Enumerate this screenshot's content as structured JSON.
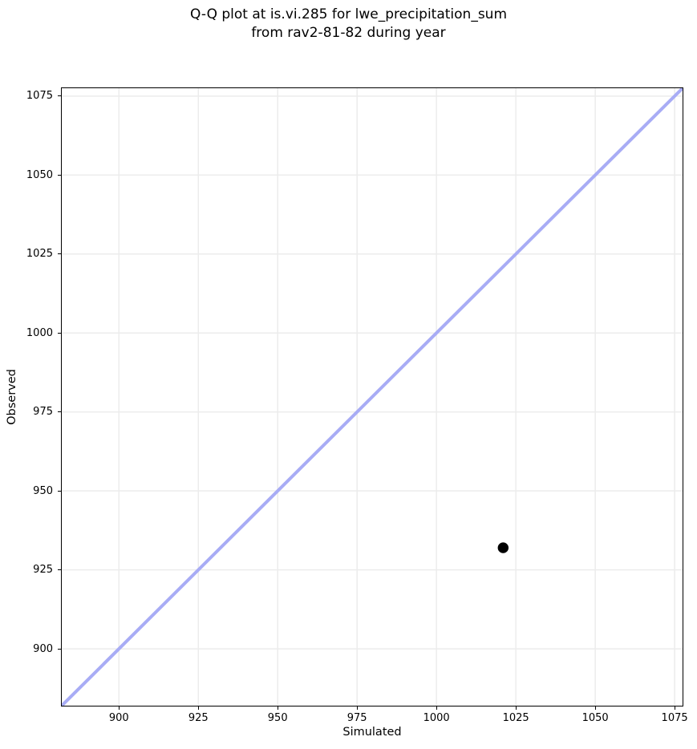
{
  "figure": {
    "title_line1": "Q-Q plot at is.vi.285 for lwe_precipitation_sum",
    "title_line2": "from rav2-81-82 during year"
  },
  "chart_data": {
    "type": "scatter",
    "title": "Q-Q plot at is.vi.285 for lwe_precipitation_sum\nfrom rav2-81-82 during year",
    "xlabel": "Simulated",
    "ylabel": "Observed",
    "xlim": [
      882,
      1077.5
    ],
    "ylim": [
      882,
      1077.5
    ],
    "xticks": [
      900,
      925,
      950,
      975,
      1000,
      1025,
      1050,
      1075
    ],
    "yticks": [
      900,
      925,
      950,
      975,
      1000,
      1025,
      1050,
      1075
    ],
    "grid": true,
    "legend": null,
    "series": [
      {
        "name": "identity-line",
        "type": "line",
        "points": [
          [
            882,
            882
          ],
          [
            1077.5,
            1077.5
          ]
        ],
        "color": "#a8acf5",
        "line_width": 4
      },
      {
        "name": "qq-points",
        "type": "scatter",
        "points": [
          [
            1021,
            932
          ]
        ],
        "color": "#000000",
        "marker_radius": 6.7
      }
    ],
    "colors": {
      "grid": "#ececec",
      "spine": "#000000",
      "background": "#ffffff",
      "text": "#000000"
    }
  }
}
